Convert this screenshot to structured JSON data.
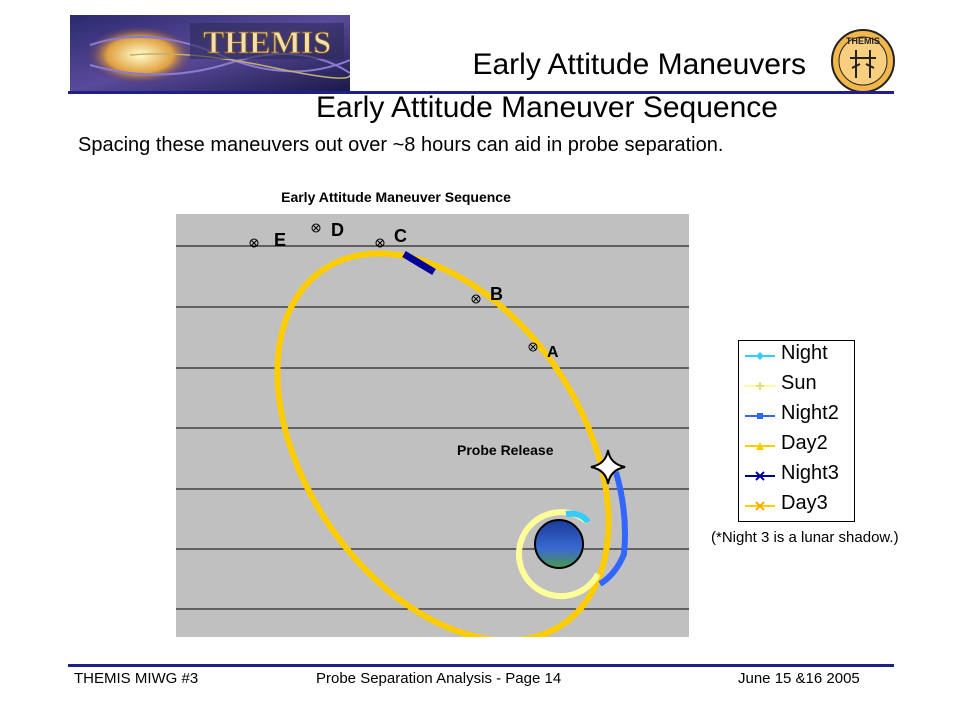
{
  "header": {
    "logo_text": "THEMIS",
    "title": "Early Attitude Maneuvers",
    "emblem_text": "THEMIS"
  },
  "slide": {
    "title": "Early Attitude Maneuver Sequence",
    "subtitle": "Spacing these maneuvers out over ~8 hours can aid in probe separation."
  },
  "chart_data": {
    "type": "scatter",
    "title": "Early Attitude Maneuver Sequence",
    "grid": true,
    "legend_position": "right",
    "series": [
      {
        "name": "Night",
        "color": "#33ccff",
        "marker": "diamond"
      },
      {
        "name": "Sun",
        "color": "#ffff99",
        "marker": "plus"
      },
      {
        "name": "Night2",
        "color": "#3366ff",
        "marker": "square"
      },
      {
        "name": "Day2",
        "color": "#ffcc00",
        "marker": "triangle"
      },
      {
        "name": "Night3",
        "color": "#000099",
        "marker": "x"
      },
      {
        "name": "Day3",
        "color": "#ffcc00",
        "marker": "x"
      }
    ],
    "annotations": [
      {
        "label": "A"
      },
      {
        "label": "B"
      },
      {
        "label": "C"
      },
      {
        "label": "D"
      },
      {
        "label": "E"
      },
      {
        "label": "Probe Release"
      }
    ]
  },
  "footnote": "(*Night 3 is a lunar shadow.)",
  "footer": {
    "left": "THEMIS MIWG #3",
    "center": "Probe Separation Analysis - Page 14",
    "right": "June 15 &16 2005"
  }
}
